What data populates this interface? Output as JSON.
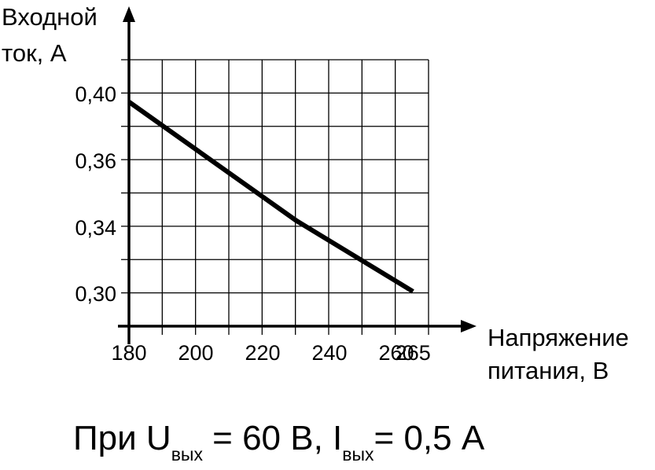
{
  "chart_data": {
    "type": "line",
    "ylabel_line1": "Входной",
    "ylabel_line2": "ток,  А",
    "xlabel_line1": "Напряжение",
    "xlabel_line2": "питания, В",
    "x_ticks": [
      {
        "value": 180,
        "label": "180"
      },
      {
        "value": 200,
        "label": "200"
      },
      {
        "value": 220,
        "label": "220"
      },
      {
        "value": 240,
        "label": "240"
      },
      {
        "value": 260,
        "label": "260"
      },
      {
        "value": 265,
        "label": "265"
      }
    ],
    "y_ticks": [
      {
        "value": 0.3,
        "label": "0,30"
      },
      {
        "value": 0.34,
        "label": "0,34"
      },
      {
        "value": 0.36,
        "label": "0,36"
      },
      {
        "value": 0.4,
        "label": "0,40"
      }
    ],
    "series": [
      {
        "x": [
          180,
          230,
          265
        ],
        "y": [
          0.395,
          0.342,
          0.301
        ]
      }
    ],
    "caption": {
      "prefix": "При U",
      "sub1": "вых",
      "mid": " = 60 В, I",
      "sub2": "вых",
      "suffix": "= 0,5 А"
    },
    "grid": true,
    "colors": {
      "line": "#000000",
      "grid": "#000000"
    }
  }
}
